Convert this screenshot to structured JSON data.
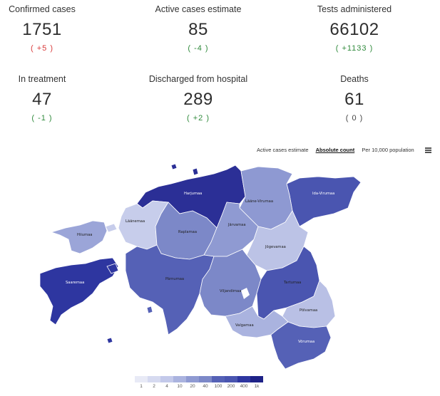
{
  "stats": [
    {
      "label": "Confirmed cases",
      "value": "1751",
      "delta": "( +5 )",
      "trend": "up"
    },
    {
      "label": "Active cases estimate",
      "value": "85",
      "delta": "( -4 )",
      "trend": "down"
    },
    {
      "label": "Tests administered",
      "value": "66102",
      "delta": "( +1133 )",
      "trend": "down"
    },
    {
      "label": "In treatment",
      "value": "47",
      "delta": "( -1 )",
      "trend": "down"
    },
    {
      "label": "Discharged from hospital",
      "value": "289",
      "delta": "( +2 )",
      "trend": "down"
    },
    {
      "label": "Deaths",
      "value": "61",
      "delta": "( 0 )",
      "trend": "neutral"
    }
  ],
  "map_toolbar": {
    "options": [
      "Active cases estimate",
      "Absolute count",
      "Per 10,000 population"
    ],
    "selected": "Absolute count",
    "menu_icon": "hamburger-menu-icon"
  },
  "counties": [
    {
      "name": "Harjumaa",
      "color": "#2b2f96"
    },
    {
      "name": "Ida-Virumaa",
      "color": "#4a55b0"
    },
    {
      "name": "Lääne-Virumaa",
      "color": "#8e99d2"
    },
    {
      "name": "Läänemaa",
      "color": "#c7cdeb"
    },
    {
      "name": "Hiiumaa",
      "color": "#9ba5d8"
    },
    {
      "name": "Raplamaa",
      "color": "#7c88c8"
    },
    {
      "name": "Järvamaa",
      "color": "#8f9ad2"
    },
    {
      "name": "Jõgevamaa",
      "color": "#bcc3e6"
    },
    {
      "name": "Saaremaa",
      "color": "#2e36a0"
    },
    {
      "name": "Pärnumaa",
      "color": "#5561b6"
    },
    {
      "name": "Viljandimaa",
      "color": "#7c88c8"
    },
    {
      "name": "Tartumaa",
      "color": "#4a55b0"
    },
    {
      "name": "Põlvamaa",
      "color": "#b9c0e5"
    },
    {
      "name": "Valgamaa",
      "color": "#aab3df"
    },
    {
      "name": "Võrumaa",
      "color": "#5561b6"
    }
  ],
  "legend": {
    "colors": [
      "#e8eaf6",
      "#d6daf0",
      "#c3c9ea",
      "#aab3df",
      "#8f9ad2",
      "#7c88c8",
      "#5561b6",
      "#4a55b0",
      "#2e36a0",
      "#1e2287"
    ],
    "ticks": [
      "1",
      "2",
      "4",
      "10",
      "20",
      "40",
      "100",
      "200",
      "400",
      "1k"
    ]
  }
}
